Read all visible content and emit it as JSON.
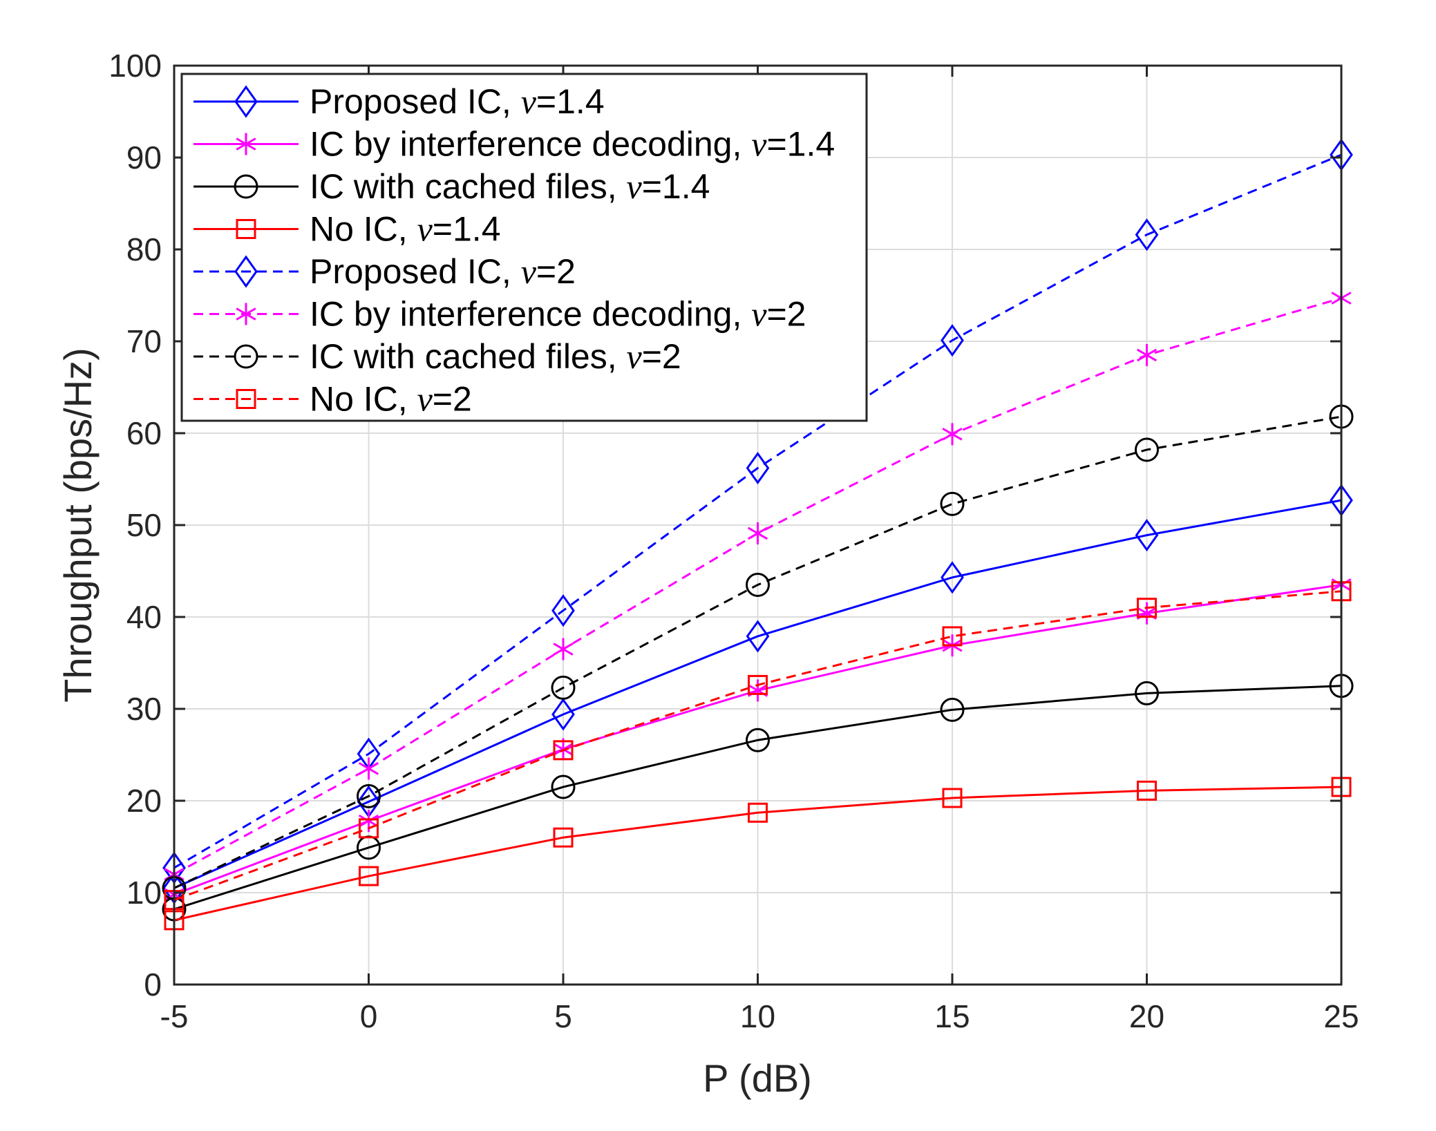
{
  "chart_data": {
    "type": "line",
    "title": "",
    "xlabel": "P (dB)",
    "ylabel": "Throughput (bps/Hz)",
    "xlim": [
      -5,
      25
    ],
    "ylim": [
      0,
      100
    ],
    "xticks": [
      -5,
      0,
      5,
      10,
      15,
      20,
      25
    ],
    "xtick_labels": [
      "-5",
      "0",
      "5",
      "10",
      "15",
      "20",
      "25"
    ],
    "yticks": [
      0,
      10,
      20,
      30,
      40,
      50,
      60,
      70,
      80,
      90,
      100
    ],
    "ytick_labels": [
      "0",
      "10",
      "20",
      "30",
      "40",
      "50",
      "60",
      "70",
      "80",
      "90",
      "100"
    ],
    "grid": true,
    "legend_position": "top-left",
    "x": [
      -5,
      0,
      5,
      10,
      15,
      20,
      25
    ],
    "series": [
      {
        "name": "Proposed IC, ν=1.4",
        "label_main": "Proposed IC, ",
        "label_nu": "ν",
        "label_val": "=1.4",
        "color": "#0000ff",
        "linestyle": "solid",
        "marker": "diamond",
        "values": [
          10.5,
          19.9,
          29.4,
          37.9,
          44.3,
          48.9,
          52.7
        ]
      },
      {
        "name": "IC by interference decoding, ν=1.4",
        "label_main": "IC by interference decoding, ",
        "label_nu": "ν",
        "label_val": "=1.4",
        "color": "#ff00ff",
        "linestyle": "solid",
        "marker": "asterisk",
        "values": [
          9.8,
          17.8,
          25.6,
          32.0,
          36.9,
          40.4,
          43.5
        ]
      },
      {
        "name": "IC with cached files, ν=1.4",
        "label_main": "IC with cached files, ",
        "label_nu": "ν",
        "label_val": "=1.4",
        "color": "#000000",
        "linestyle": "solid",
        "marker": "circle",
        "values": [
          8.2,
          14.9,
          21.5,
          26.6,
          29.9,
          31.7,
          32.5
        ]
      },
      {
        "name": "No IC, ν=1.4",
        "label_main": "No IC, ",
        "label_nu": "ν",
        "label_val": "=1.4",
        "color": "#ff0000",
        "linestyle": "solid",
        "marker": "square",
        "values": [
          7.0,
          11.8,
          16.0,
          18.7,
          20.3,
          21.1,
          21.5
        ]
      },
      {
        "name": "Proposed IC, ν=2",
        "label_main": "Proposed IC, ",
        "label_nu": "ν",
        "label_val": "=2",
        "color": "#0000ff",
        "linestyle": "dashed",
        "marker": "diamond",
        "values": [
          12.7,
          25.1,
          40.7,
          56.2,
          70.1,
          81.6,
          90.3
        ]
      },
      {
        "name": "IC by interference decoding, ν=2",
        "label_main": "IC by interference decoding, ",
        "label_nu": "ν",
        "label_val": "=2",
        "color": "#ff00ff",
        "linestyle": "dashed",
        "marker": "asterisk",
        "values": [
          12.0,
          23.5,
          36.5,
          49.1,
          59.9,
          68.5,
          74.7
        ]
      },
      {
        "name": "IC with cached files, ν=2",
        "label_main": "IC with cached files, ",
        "label_nu": "ν",
        "label_val": "=2",
        "color": "#000000",
        "linestyle": "dashed",
        "marker": "circle",
        "values": [
          10.5,
          20.5,
          32.3,
          43.5,
          52.3,
          58.2,
          61.8
        ]
      },
      {
        "name": "No IC, ν=2",
        "label_main": "No IC, ",
        "label_nu": "ν",
        "label_val": "=2",
        "color": "#ff0000",
        "linestyle": "dashed",
        "marker": "square",
        "values": [
          9.2,
          17.0,
          25.5,
          32.6,
          37.9,
          41.0,
          42.8
        ]
      }
    ]
  }
}
